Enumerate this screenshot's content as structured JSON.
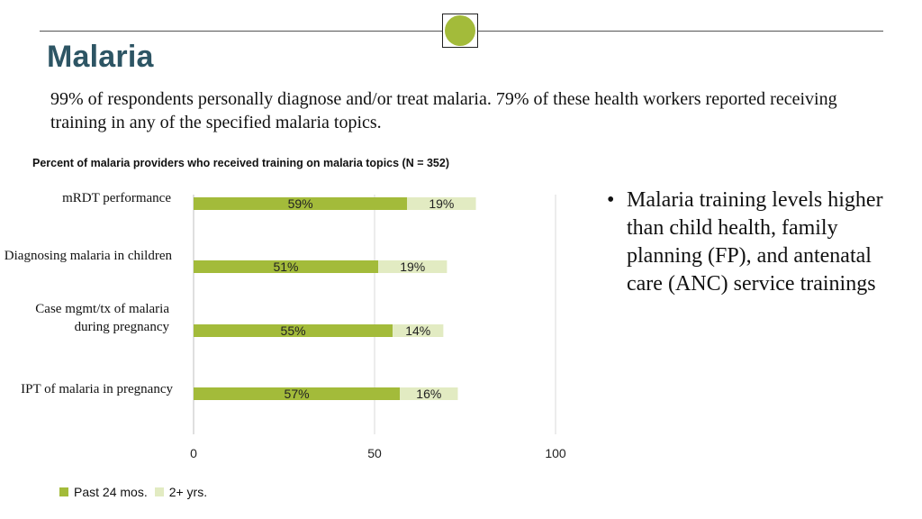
{
  "slide": {
    "title": "Malaria",
    "intro": "99% of respondents personally diagnose and/or treat malaria. 79% of these health workers reported receiving training in any of the specified malaria topics.",
    "bullet": "Malaria training levels higher than child health, family planning (FP), and antenatal care (ANC) service trainings"
  },
  "colors": {
    "accent_circle": "#a3bb3a",
    "title": "#2d5564",
    "past24": "#a3bb3a",
    "twoplus": "#e2ebc2"
  },
  "chart_data": {
    "type": "bar",
    "orientation": "horizontal",
    "stacked": true,
    "title": "Percent of malaria providers who received training on malaria topics (N = 352)",
    "categories": [
      "mRDT performance",
      "Diagnosing malaria in children",
      "Case mgmt/tx of malaria during pregnancy",
      "IPT of malaria in pregnancy"
    ],
    "series": [
      {
        "name": "Past 24 mos.",
        "values": [
          59,
          51,
          55,
          57
        ],
        "labels": [
          "59%",
          "51%",
          "55%",
          "57%"
        ]
      },
      {
        "name": "2+ yrs.",
        "values": [
          19,
          19,
          14,
          16
        ],
        "labels": [
          "19%",
          "19%",
          "14%",
          "16%"
        ]
      }
    ],
    "xlim": [
      0,
      100
    ],
    "xticks": [
      "0",
      "50",
      "100"
    ],
    "grid": true,
    "legend_position": "bottom-left"
  }
}
